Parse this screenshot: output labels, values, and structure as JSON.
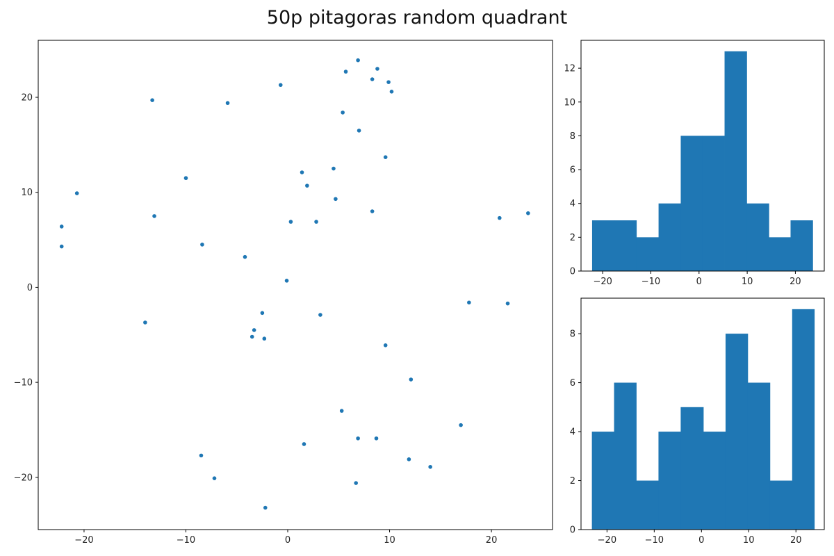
{
  "figure": {
    "title": "50p pitagoras random quadrant"
  },
  "colors": {
    "series": "#1f77b4",
    "axis": "#000000",
    "background": "#ffffff"
  },
  "chart_data": [
    {
      "type": "scatter",
      "title": "",
      "xlabel": "",
      "ylabel": "",
      "xlim": [
        -24.5,
        26
      ],
      "ylim": [
        -25.5,
        26
      ],
      "xticks": [
        -20,
        -10,
        0,
        10,
        20
      ],
      "yticks": [
        -20,
        -10,
        0,
        10,
        20
      ],
      "grid": false,
      "points": [
        [
          6.9,
          23.9
        ],
        [
          8.8,
          23.0
        ],
        [
          5.7,
          22.7
        ],
        [
          8.3,
          21.9
        ],
        [
          9.9,
          21.6
        ],
        [
          10.2,
          20.6
        ],
        [
          -0.7,
          21.3
        ],
        [
          -13.3,
          19.7
        ],
        [
          -5.9,
          19.4
        ],
        [
          5.4,
          18.4
        ],
        [
          7.0,
          16.5
        ],
        [
          9.6,
          13.7
        ],
        [
          1.4,
          12.1
        ],
        [
          4.5,
          12.5
        ],
        [
          1.9,
          10.7
        ],
        [
          -10.0,
          11.5
        ],
        [
          -20.7,
          9.9
        ],
        [
          4.7,
          9.3
        ],
        [
          8.3,
          8.0
        ],
        [
          -13.1,
          7.5
        ],
        [
          0.3,
          6.9
        ],
        [
          2.8,
          6.9
        ],
        [
          -22.2,
          6.4
        ],
        [
          20.8,
          7.3
        ],
        [
          23.6,
          7.8
        ],
        [
          -22.2,
          4.3
        ],
        [
          -8.4,
          4.5
        ],
        [
          -4.2,
          3.2
        ],
        [
          -0.1,
          0.7
        ],
        [
          17.8,
          -1.6
        ],
        [
          21.6,
          -1.7
        ],
        [
          -2.5,
          -2.7
        ],
        [
          3.2,
          -2.9
        ],
        [
          -14.0,
          -3.7
        ],
        [
          -3.3,
          -4.5
        ],
        [
          -3.5,
          -5.2
        ],
        [
          -2.3,
          -5.4
        ],
        [
          9.6,
          -6.1
        ],
        [
          12.1,
          -9.7
        ],
        [
          5.3,
          -13.0
        ],
        [
          17.0,
          -14.5
        ],
        [
          1.6,
          -16.5
        ],
        [
          6.9,
          -15.9
        ],
        [
          8.7,
          -15.9
        ],
        [
          -8.5,
          -17.7
        ],
        [
          11.9,
          -18.1
        ],
        [
          14.0,
          -18.9
        ],
        [
          -7.2,
          -20.1
        ],
        [
          6.7,
          -20.6
        ],
        [
          -2.2,
          -23.2
        ]
      ]
    },
    {
      "type": "histogram",
      "title": "",
      "variable": "x",
      "xlim": [
        -24.5,
        26
      ],
      "ylim": [
        0,
        13.65
      ],
      "xticks": [
        -20,
        -10,
        0,
        10,
        20
      ],
      "yticks": [
        0,
        2,
        4,
        6,
        8,
        10,
        12
      ],
      "bin_edges": [
        -22.2,
        -17.6,
        -13.0,
        -8.4,
        -3.8,
        0.7,
        5.3,
        9.9,
        14.5,
        19.0,
        23.6
      ],
      "counts": [
        3,
        3,
        2,
        4,
        8,
        8,
        13,
        4,
        2,
        3
      ]
    },
    {
      "type": "histogram",
      "title": "",
      "variable": "y",
      "xlim": [
        -25.5,
        26
      ],
      "ylim": [
        0,
        9.45
      ],
      "xticks": [
        -20,
        -10,
        0,
        10,
        20
      ],
      "yticks": [
        0,
        2,
        4,
        6,
        8
      ],
      "bin_edges": [
        -23.2,
        -18.5,
        -13.8,
        -9.1,
        -4.4,
        0.4,
        5.1,
        9.8,
        14.5,
        19.2,
        23.9
      ],
      "counts": [
        4,
        6,
        2,
        4,
        5,
        4,
        8,
        6,
        2,
        9
      ]
    }
  ]
}
